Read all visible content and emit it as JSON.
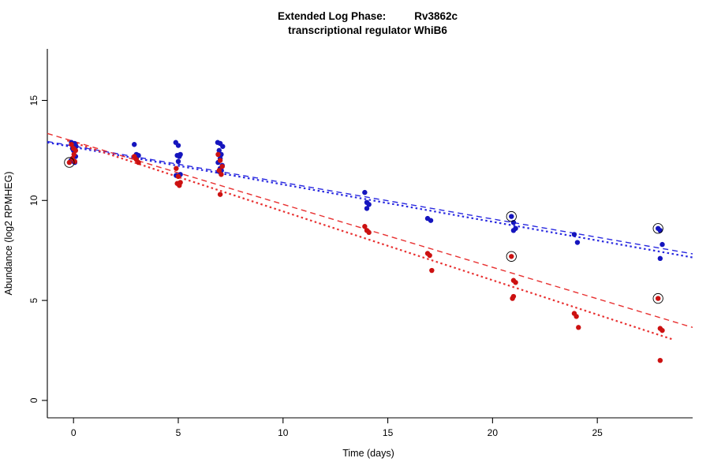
{
  "title": {
    "line1_left": "Extended Log Phase:",
    "line1_right": "Rv3862c",
    "line2": "transcriptional regulator WhiB6"
  },
  "chart_data": {
    "type": "scatter",
    "title": "Extended Log Phase: Rv3862c",
    "subtitle": "transcriptional regulator WhiB6",
    "xlabel": "Time  (days)",
    "ylabel": "Abundance  (log2 RPMHEG)",
    "xlim": [
      -1.25,
      29.55
    ],
    "ylim": [
      -0.87,
      17.58
    ],
    "xticks": [
      0,
      5,
      10,
      15,
      20,
      25
    ],
    "yticks": [
      0,
      5,
      10,
      15
    ],
    "grid": false,
    "legend": "none",
    "point_radius": 3.2,
    "series": [
      {
        "name": "blue-condition",
        "color": "#1515BE",
        "points": [
          [
            -0.1,
            12.9
          ],
          [
            0.05,
            12.85
          ],
          [
            0.12,
            12.7
          ],
          [
            -0.05,
            12.6
          ],
          [
            0.0,
            12.5
          ],
          [
            0.1,
            12.2
          ],
          [
            -0.12,
            12.0
          ],
          [
            0.0,
            11.95
          ],
          [
            0.06,
            11.9
          ],
          [
            2.9,
            12.8
          ],
          [
            3.0,
            12.3
          ],
          [
            3.1,
            12.25
          ],
          [
            3.0,
            12.1
          ],
          [
            4.88,
            12.9
          ],
          [
            5.0,
            12.75
          ],
          [
            5.1,
            12.3
          ],
          [
            4.95,
            12.25
          ],
          [
            5.05,
            12.2
          ],
          [
            5.0,
            11.95
          ],
          [
            5.1,
            11.3
          ],
          [
            4.9,
            11.25
          ],
          [
            6.88,
            12.9
          ],
          [
            7.0,
            12.85
          ],
          [
            7.12,
            12.7
          ],
          [
            6.95,
            12.5
          ],
          [
            7.05,
            12.3
          ],
          [
            7.0,
            12.1
          ],
          [
            6.9,
            11.9
          ],
          [
            7.1,
            11.75
          ],
          [
            7.0,
            11.6
          ],
          [
            7.06,
            11.5
          ],
          [
            6.94,
            11.45
          ],
          [
            13.9,
            10.4
          ],
          [
            14.0,
            9.9
          ],
          [
            14.1,
            9.8
          ],
          [
            14.0,
            9.6
          ],
          [
            16.9,
            9.1
          ],
          [
            17.05,
            9.0
          ],
          [
            20.9,
            9.2
          ],
          [
            21.0,
            8.9
          ],
          [
            21.1,
            8.6
          ],
          [
            21.0,
            8.5
          ],
          [
            23.9,
            8.3
          ],
          [
            24.05,
            7.9
          ],
          [
            27.9,
            8.6
          ],
          [
            28.0,
            8.5
          ],
          [
            28.1,
            7.8
          ],
          [
            28.0,
            7.1
          ]
        ],
        "circled_points": [
          [
            20.9,
            9.2
          ],
          [
            27.9,
            8.6
          ]
        ]
      },
      {
        "name": "red-condition",
        "color": "#CC1111",
        "points": [
          [
            -0.1,
            12.8
          ],
          [
            0.0,
            12.6
          ],
          [
            0.1,
            12.5
          ],
          [
            0.02,
            12.3
          ],
          [
            -0.05,
            12.1
          ],
          [
            0.06,
            11.95
          ],
          [
            -0.2,
            11.9
          ],
          [
            2.9,
            12.2
          ],
          [
            3.0,
            12.05
          ],
          [
            3.1,
            11.9
          ],
          [
            4.9,
            11.6
          ],
          [
            5.0,
            11.2
          ],
          [
            5.1,
            10.9
          ],
          [
            4.95,
            10.85
          ],
          [
            5.05,
            10.75
          ],
          [
            6.9,
            12.3
          ],
          [
            7.0,
            12.0
          ],
          [
            7.1,
            11.7
          ],
          [
            6.95,
            11.5
          ],
          [
            7.05,
            11.3
          ],
          [
            7.0,
            10.3
          ],
          [
            13.9,
            8.7
          ],
          [
            14.0,
            8.5
          ],
          [
            14.1,
            8.4
          ],
          [
            16.9,
            7.35
          ],
          [
            17.0,
            7.25
          ],
          [
            17.1,
            6.5
          ],
          [
            20.9,
            7.2
          ],
          [
            21.0,
            6.0
          ],
          [
            21.1,
            5.9
          ],
          [
            21.0,
            5.2
          ],
          [
            20.95,
            5.1
          ],
          [
            23.9,
            4.35
          ],
          [
            24.0,
            4.2
          ],
          [
            24.1,
            3.65
          ],
          [
            27.9,
            5.1
          ],
          [
            28.0,
            3.6
          ],
          [
            28.1,
            3.5
          ],
          [
            28.0,
            2.0
          ]
        ],
        "circled_points": [
          [
            -0.2,
            11.9
          ],
          [
            20.9,
            7.2
          ],
          [
            27.9,
            5.1
          ]
        ]
      }
    ],
    "fit_lines": [
      {
        "series": "blue-condition",
        "color": "#2929E0",
        "dash": "7,5",
        "width": 1.4,
        "x1": -1.25,
        "y1": 12.95,
        "x2": 29.55,
        "y2": 7.33
      },
      {
        "series": "blue-condition",
        "color": "#2929E0",
        "dash": "2.5,3.5",
        "width": 2.2,
        "x1": -1.25,
        "y1": 12.9,
        "x2": 29.55,
        "y2": 7.15
      },
      {
        "series": "red-condition",
        "color": "#E83030",
        "dash": "7,5",
        "width": 1.4,
        "x1": -1.25,
        "y1": 13.35,
        "x2": 29.55,
        "y2": 3.65
      },
      {
        "series": "red-condition",
        "color": "#E83030",
        "dash": "2.5,3.5",
        "width": 2.2,
        "x1": -0.3,
        "y1": 13.0,
        "x2": 28.6,
        "y2": 3.05
      }
    ]
  }
}
